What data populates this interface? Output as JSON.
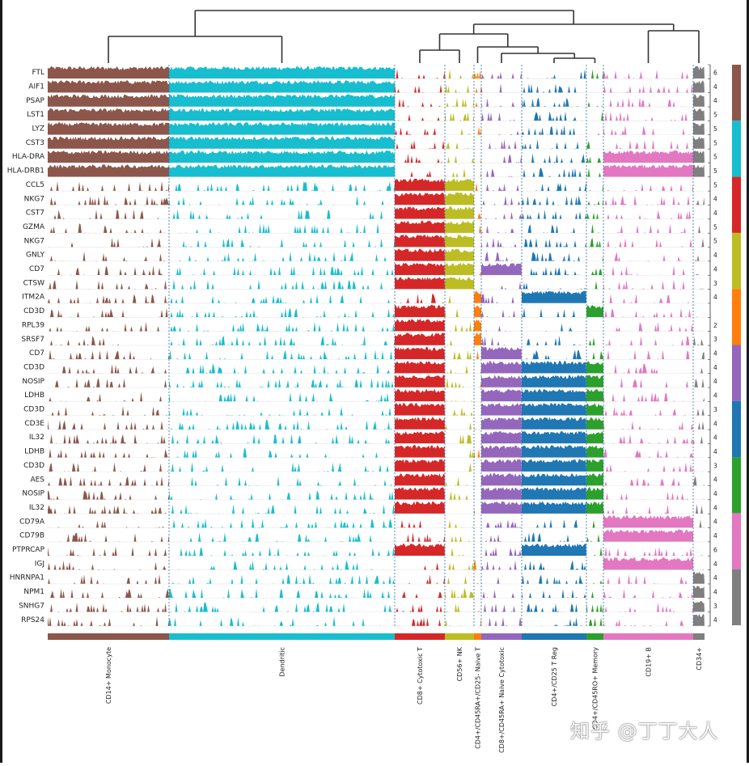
{
  "chart_data": {
    "type": "tracksplot",
    "title": "",
    "genes": [
      "FTL",
      "AIF1",
      "PSAP",
      "LST1",
      "LYZ",
      "CST3",
      "HLA-DRA",
      "HLA-DRB1",
      "CCL5",
      "NKG7",
      "CST7",
      "GZMA",
      "NKG7",
      "GNLY",
      "CD7",
      "CTSW",
      "ITM2A",
      "CD3D",
      "RPL39",
      "SRSF7",
      "CD7",
      "CD3D",
      "NOSIP",
      "LDHB",
      "CD3D",
      "CD3E",
      "IL32",
      "LDHB",
      "CD3D",
      "AES",
      "NOSIP",
      "IL32",
      "CD79A",
      "CD79B",
      "PTPRCAP",
      "IGJ",
      "HNRNPA1",
      "NPM1",
      "SNHG7",
      "RPS24"
    ],
    "track_max": [
      6,
      4,
      4,
      5,
      5,
      5,
      5,
      5,
      5,
      4,
      4,
      5,
      5,
      4,
      4,
      3,
      4,
      null,
      2,
      3,
      4,
      4,
      4,
      4,
      3,
      4,
      4,
      4,
      3,
      4,
      4,
      4,
      4,
      4,
      6,
      4,
      4,
      4,
      3,
      4
    ],
    "groups": [
      {
        "name": "CD14+ Monocyte",
        "color": "#8c564b",
        "width": 150
      },
      {
        "name": "Dendritic",
        "color": "#17becf",
        "width": 279
      },
      {
        "name": "CD8+ Cytotoxic T",
        "color": "#d62728",
        "width": 62
      },
      {
        "name": "CD56+ NK",
        "color": "#bcbd22",
        "width": 36
      },
      {
        "name": "CD4+/CD45RA+/CD25- Naive T",
        "color": "#ff7f0e",
        "width": 9
      },
      {
        "name": "CD8+/CD45RA+ Naive Cytotoxic",
        "color": "#9467bd",
        "width": 50
      },
      {
        "name": "CD4+/CD25 T Reg",
        "color": "#1f77b4",
        "width": 80
      },
      {
        "name": "CD4+/CD45RO+ Memory",
        "color": "#2ca02c",
        "width": 21
      },
      {
        "name": "CD19+ B",
        "color": "#e377c2",
        "width": 111
      },
      {
        "name": "CD34+",
        "color": "#7f7f7f",
        "width": 14
      }
    ],
    "high_expression": [
      [
        0,
        1,
        2,
        3,
        4,
        5,
        6,
        7
      ],
      [
        0,
        1,
        2,
        3,
        4,
        5,
        6,
        7
      ],
      [
        8,
        9,
        10,
        11,
        12,
        13,
        14,
        15,
        17,
        18,
        19,
        20,
        21,
        22,
        23,
        24,
        25,
        26,
        27,
        28,
        29,
        30,
        31,
        34
      ],
      [
        8,
        9,
        10,
        11,
        12,
        13,
        14,
        15
      ],
      [
        16,
        17,
        18,
        19
      ],
      [
        14,
        20,
        21,
        22,
        23,
        24,
        25,
        26,
        27,
        28,
        29,
        30,
        31
      ],
      [
        16,
        21,
        22,
        23,
        24,
        25,
        26,
        27,
        28,
        29,
        30,
        31,
        34
      ],
      [
        17,
        21,
        22,
        23,
        24,
        25,
        26,
        27,
        28,
        29,
        30,
        31
      ],
      [
        6,
        7,
        32,
        33,
        35
      ],
      [
        0,
        1,
        2,
        3,
        4,
        5,
        6,
        7,
        36,
        37,
        38,
        39
      ]
    ],
    "dendrogram": "hierarchical clustering of groups",
    "legend": "categorical color bar at right"
  },
  "watermark_text": "知乎 @丁丁大人"
}
